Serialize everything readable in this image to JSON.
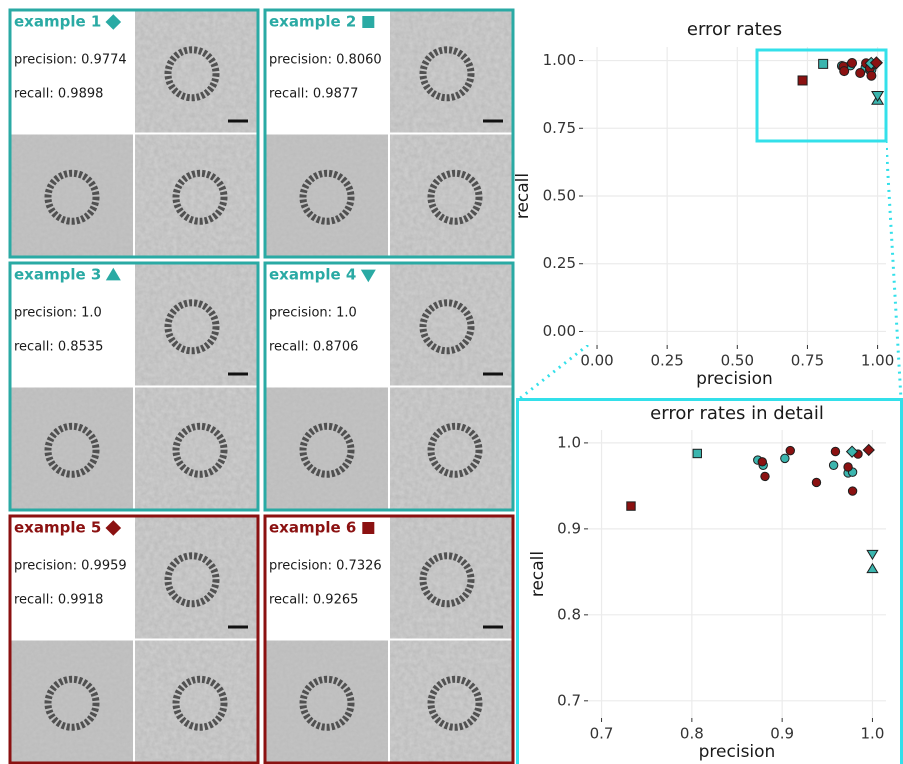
{
  "panels": [
    {
      "title": "example 1",
      "marker": "diamond",
      "color": "#2aaaa4",
      "precision": "precision: 0.9774",
      "recall": "recall: 0.9898"
    },
    {
      "title": "example 2",
      "marker": "square",
      "color": "#2aaaa4",
      "precision": "precision: 0.8060",
      "recall": "recall: 0.9877"
    },
    {
      "title": "example 3",
      "marker": "triangle-up",
      "color": "#2aaaa4",
      "precision": "precision: 1.0",
      "recall": "recall: 0.8535"
    },
    {
      "title": "example 4",
      "marker": "triangle-down",
      "color": "#2aaaa4",
      "precision": "precision: 1.0",
      "recall": "recall: 0.8706"
    },
    {
      "title": "example 5",
      "marker": "diamond",
      "color": "#8b1111",
      "precision": "precision: 0.9959",
      "recall": "recall: 0.9918"
    },
    {
      "title": "example 6",
      "marker": "square",
      "color": "#8b1111",
      "precision": "precision: 0.7326",
      "recall": "recall: 0.9265"
    }
  ],
  "chart_data": [
    {
      "type": "scatter",
      "title": "error rates",
      "xlabel": "precision",
      "ylabel": "recall",
      "xlim": [
        -0.05,
        1.03
      ],
      "ylim": [
        -0.05,
        1.05
      ],
      "grid": true,
      "xticks": [
        {
          "value": 0,
          "label": "0.00"
        },
        {
          "value": 0.25,
          "label": "0.25"
        },
        {
          "value": 0.5,
          "label": "0.50"
        },
        {
          "value": 0.75,
          "label": "0.75"
        },
        {
          "value": 1,
          "label": "1.00"
        }
      ],
      "yticks": [
        {
          "value": 0,
          "label": "0.00"
        },
        {
          "value": 0.25,
          "label": "0.25"
        },
        {
          "value": 0.5,
          "label": "0.50"
        },
        {
          "value": 0.75,
          "label": "0.75"
        },
        {
          "value": 1,
          "label": "1.00"
        }
      ],
      "series": [
        {
          "marker": "circle",
          "color": "#3bb5ae",
          "x": [
            0.873,
            0.879,
            0.903,
            0.957,
            0.973,
            0.978
          ],
          "y": [
            0.98,
            0.974,
            0.982,
            0.974,
            0.965,
            0.966
          ]
        },
        {
          "marker": "circle",
          "color": "#8b1111",
          "x": [
            0.878,
            0.881,
            0.909,
            0.938,
            0.959,
            0.973,
            0.978,
            0.984
          ],
          "y": [
            0.978,
            0.961,
            0.991,
            0.954,
            0.99,
            0.972,
            0.944,
            0.987
          ]
        },
        {
          "marker": "diamond",
          "color": "#3bb5ae",
          "x": [
            0.9774
          ],
          "y": [
            0.9898
          ]
        },
        {
          "marker": "square",
          "color": "#3bb5ae",
          "x": [
            0.806
          ],
          "y": [
            0.9877
          ]
        },
        {
          "marker": "triangle-up",
          "color": "#3bb5ae",
          "x": [
            1.0
          ],
          "y": [
            0.8535
          ]
        },
        {
          "marker": "triangle-down",
          "color": "#3bb5ae",
          "x": [
            1.0
          ],
          "y": [
            0.8706
          ]
        },
        {
          "marker": "diamond",
          "color": "#8b1111",
          "x": [
            0.9959
          ],
          "y": [
            0.9918
          ]
        },
        {
          "marker": "square",
          "color": "#8b1111",
          "x": [
            0.7326
          ],
          "y": [
            0.9265
          ]
        }
      ]
    },
    {
      "type": "scatter",
      "title": "error rates in detail",
      "xlabel": "precision",
      "ylabel": "recall",
      "xlim": [
        0.685,
        1.015
      ],
      "ylim": [
        0.68,
        1.015
      ],
      "grid": true,
      "xticks": [
        0.7,
        0.8,
        0.9,
        {
          "value": 1,
          "label": "1.0"
        }
      ],
      "yticks": [
        0.7,
        0.8,
        0.9,
        {
          "value": 1,
          "label": "1.0"
        }
      ],
      "series": [
        {
          "marker": "circle",
          "color": "#3bb5ae",
          "x": [
            0.873,
            0.879,
            0.903,
            0.957,
            0.973,
            0.978
          ],
          "y": [
            0.98,
            0.974,
            0.982,
            0.974,
            0.965,
            0.966
          ]
        },
        {
          "marker": "circle",
          "color": "#8b1111",
          "x": [
            0.878,
            0.881,
            0.909,
            0.938,
            0.959,
            0.973,
            0.978,
            0.984
          ],
          "y": [
            0.978,
            0.961,
            0.991,
            0.954,
            0.99,
            0.972,
            0.944,
            0.987
          ]
        },
        {
          "marker": "diamond",
          "color": "#3bb5ae",
          "x": [
            0.9774
          ],
          "y": [
            0.9898
          ]
        },
        {
          "marker": "square",
          "color": "#3bb5ae",
          "x": [
            0.806
          ],
          "y": [
            0.9877
          ]
        },
        {
          "marker": "triangle-up",
          "color": "#3bb5ae",
          "x": [
            1.0
          ],
          "y": [
            0.8535
          ]
        },
        {
          "marker": "triangle-down",
          "color": "#3bb5ae",
          "x": [
            1.0
          ],
          "y": [
            0.8706
          ]
        },
        {
          "marker": "diamond",
          "color": "#8b1111",
          "x": [
            0.9959
          ],
          "y": [
            0.9918
          ]
        },
        {
          "marker": "square",
          "color": "#8b1111",
          "x": [
            0.7326
          ],
          "y": [
            0.9265
          ]
        }
      ]
    }
  ]
}
